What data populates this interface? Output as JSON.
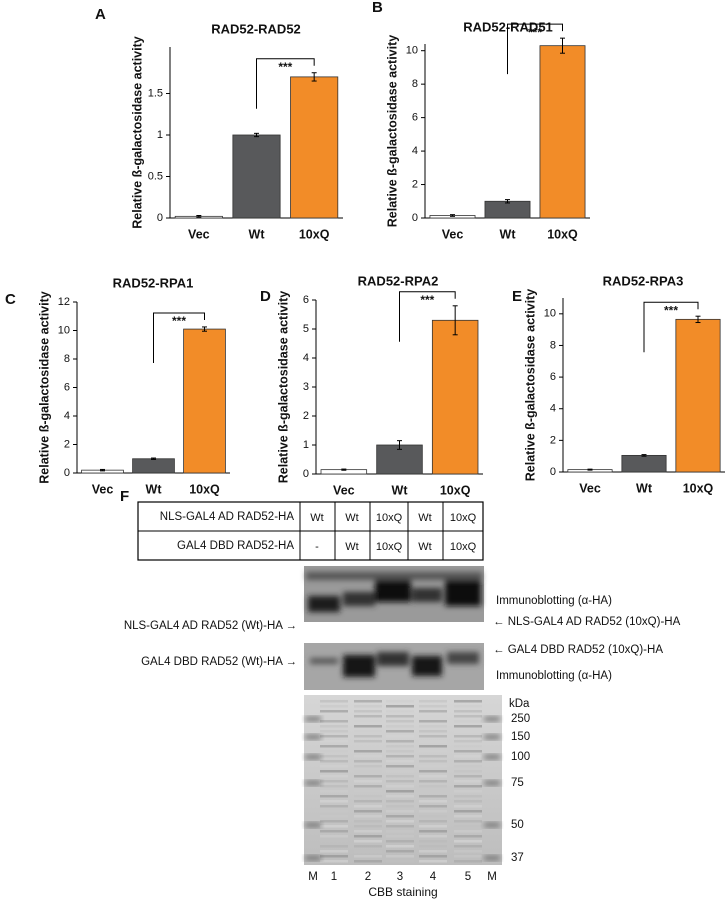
{
  "chart_data": [
    {
      "type": "bar",
      "panel": "A",
      "title": "RAD52-RAD52",
      "y_label": "Relative ß-galactosidase activity",
      "categories": [
        "Vec",
        "Wt",
        "10xQ"
      ],
      "values": [
        0.02,
        1.0,
        1.7
      ],
      "errors": [
        0.01,
        0.02,
        0.05
      ],
      "colors": [
        "#ffffff",
        "#58595b",
        "#f28c28"
      ],
      "ylim": [
        0,
        2.06
      ],
      "yticks": [
        0,
        0.5,
        1,
        1.5
      ],
      "significance": "***"
    },
    {
      "type": "bar",
      "panel": "B",
      "title": "RAD52-RAD51",
      "y_label": "Relative ß-galactosidase activity",
      "categories": [
        "Vec",
        "Wt",
        "10xQ"
      ],
      "values": [
        0.15,
        1.0,
        10.3
      ],
      "errors": [
        0.05,
        0.1,
        0.45
      ],
      "colors": [
        "#ffffff",
        "#58595b",
        "#f28c28"
      ],
      "ylim": [
        0,
        10.4
      ],
      "yticks": [
        0,
        2,
        4,
        6,
        8,
        10
      ],
      "significance": "***"
    },
    {
      "type": "bar",
      "panel": "C",
      "title": "RAD52-RPA1",
      "y_label": "Relative ß-galactosidase activity",
      "categories": [
        "Vec",
        "Wt",
        "10xQ"
      ],
      "values": [
        0.2,
        1.0,
        10.1
      ],
      "errors": [
        0.05,
        0.05,
        0.15
      ],
      "colors": [
        "#ffffff",
        "#58595b",
        "#f28c28"
      ],
      "ylim": [
        0,
        12
      ],
      "yticks": [
        0,
        2,
        4,
        6,
        8,
        10,
        12
      ],
      "significance": "***"
    },
    {
      "type": "bar",
      "panel": "D",
      "title": "RAD52-RPA2",
      "y_label": "Relative ß-galactosidase activity",
      "categories": [
        "Vec",
        "Wt",
        "10xQ"
      ],
      "values": [
        0.15,
        1.0,
        5.3
      ],
      "errors": [
        0.02,
        0.15,
        0.5
      ],
      "colors": [
        "#ffffff",
        "#58595b",
        "#f28c28"
      ],
      "ylim": [
        0,
        6
      ],
      "yticks": [
        0,
        1,
        2,
        3,
        4,
        5,
        6
      ],
      "significance": "***"
    },
    {
      "type": "bar",
      "panel": "E",
      "title": "RAD52-RPA3",
      "y_label": "Relative ß-galactosidase activity",
      "categories": [
        "Vec",
        "Wt",
        "10xQ"
      ],
      "values": [
        0.15,
        1.05,
        9.65
      ],
      "errors": [
        0.03,
        0.05,
        0.2
      ],
      "colors": [
        "#ffffff",
        "#58595b",
        "#f28c28"
      ],
      "ylim": [
        0,
        11
      ],
      "yticks": [
        0,
        2,
        4,
        6,
        8,
        10
      ],
      "significance": "***"
    }
  ],
  "panel_f": {
    "label": "F",
    "table": {
      "rows": [
        [
          "NLS-GAL4 AD RAD52-HA",
          "Wt",
          "Wt",
          "10xQ",
          "Wt",
          "10xQ"
        ],
        [
          "GAL4 DBD RAD52-HA",
          "-",
          "Wt",
          "10xQ",
          "Wt",
          "10xQ"
        ]
      ]
    },
    "blot1": {
      "right_title": "Immunoblotting (α-HA)",
      "right_arrow": "← NLS-GAL4 AD RAD52 (10xQ)-HA",
      "left_arrow": "NLS-GAL4 AD RAD52 (Wt)-HA →"
    },
    "blot2": {
      "right_arrow": "← GAL4 DBD RAD52 (10xQ)-HA",
      "right_title": "Immunoblotting (α-HA)",
      "left_arrow": "GAL4 DBD RAD52 (Wt)-HA →"
    },
    "kda_unit": "kDa",
    "kda": [
      250,
      150,
      100,
      75,
      50,
      37
    ],
    "lanes": [
      "M",
      "1",
      "2",
      "3",
      "4",
      "5",
      "M"
    ],
    "stain_label": "CBB staining"
  }
}
